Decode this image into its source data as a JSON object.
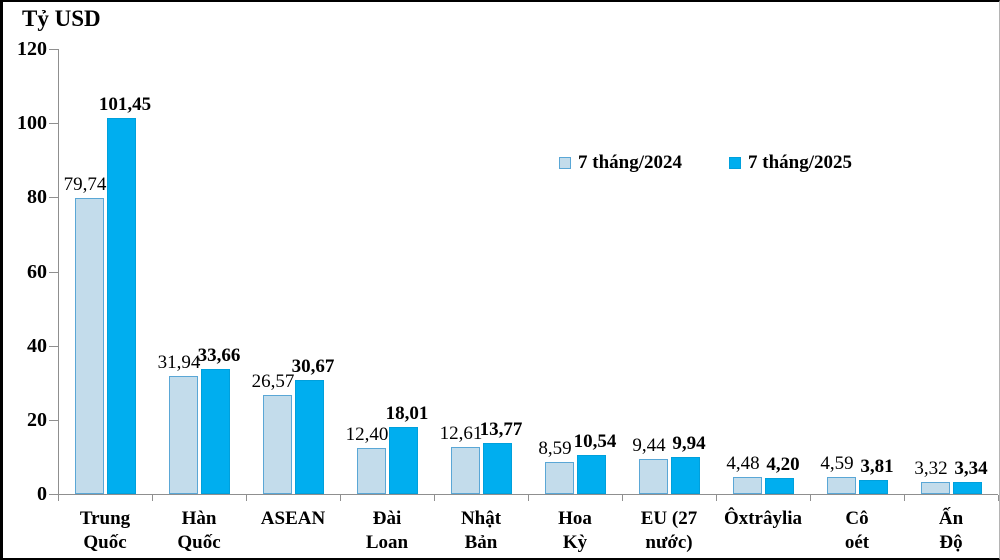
{
  "chart_data": {
    "type": "bar",
    "title": "Tỷ USD",
    "categories": [
      "Trung\nQuốc",
      "Hàn\nQuốc",
      "ASEAN",
      "Đài\nLoan",
      "Nhật\nBản",
      "Hoa\nKỳ",
      "EU (27\nnước)",
      "Ôxtrâylia",
      "Cô\noét",
      "Ấn\nĐộ"
    ],
    "series": [
      {
        "name": "7 tháng/2024",
        "values": [
          79.74,
          31.94,
          26.57,
          12.4,
          12.61,
          8.59,
          9.44,
          4.48,
          4.59,
          3.32
        ],
        "labels": [
          "79,74",
          "31,94",
          "26,57",
          "12,40",
          "12,61",
          "8,59",
          "9,44",
          "4,48",
          "4,59",
          "3,32"
        ],
        "fill": "#c3dceb",
        "border": "#5aa7d6",
        "bold_labels": false
      },
      {
        "name": "7 tháng/2025",
        "values": [
          101.45,
          33.66,
          30.67,
          18.01,
          13.77,
          10.54,
          9.94,
          4.2,
          3.81,
          3.34
        ],
        "labels": [
          "101,45",
          "33,66",
          "30,67",
          "18,01",
          "13,77",
          "10,54",
          "9,94",
          "4,20",
          "3,81",
          "3,34"
        ],
        "fill": "#00aeef",
        "border": "#00a0dc",
        "bold_labels": true
      }
    ],
    "ylim": [
      0,
      120
    ],
    "ytick_step": 20,
    "ytick_labels": [
      "0",
      "20",
      "40",
      "60",
      "80",
      "100",
      "120"
    ],
    "xlabel": "",
    "ylabel": "Tỷ USD",
    "grid": false,
    "legend_position": "top-right-inside",
    "colors": {
      "axis": "#8f8f8f",
      "text": "#000000",
      "background": "#ffffff"
    }
  }
}
